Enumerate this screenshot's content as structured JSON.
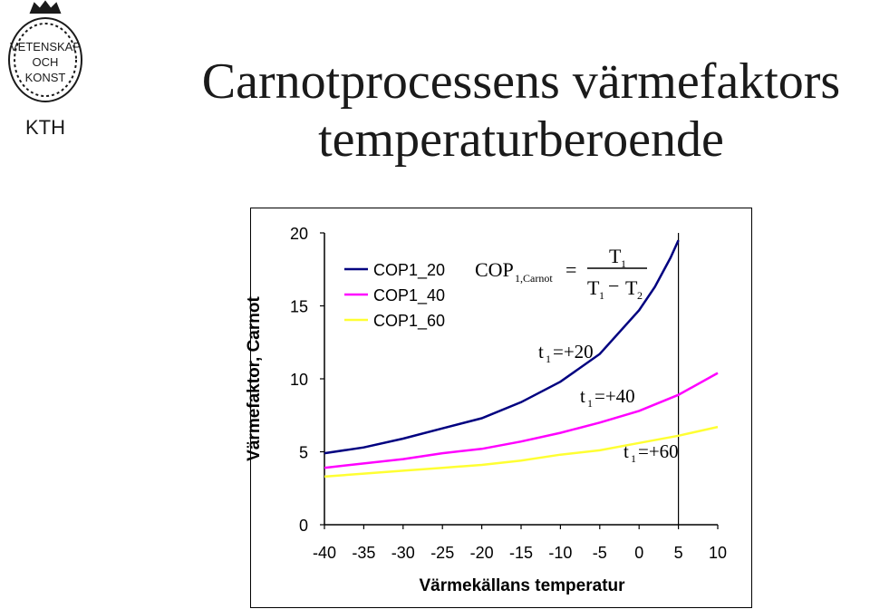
{
  "logo": {
    "lines": [
      "VETENSKAP",
      "OCH",
      "KONST"
    ],
    "brand": "KTH",
    "color": "#1a1a1a"
  },
  "title": {
    "line1": "Carnotprocessens värmefaktors",
    "line2": "temperaturberoende"
  },
  "chart_data": {
    "type": "line",
    "xlabel": "Värmekällans temperatur",
    "ylabel": "Värmefaktor, Carnot",
    "xlim": [
      -40,
      10
    ],
    "ylim": [
      0,
      20
    ],
    "x_ticks": [
      "-40",
      "-35",
      "-30",
      "-25",
      "-20",
      "-15",
      "-10",
      "-5",
      "0",
      "5",
      "10"
    ],
    "y_ticks": [
      "20",
      "15",
      "10",
      "5",
      "0"
    ],
    "x_tick_values": [
      -40,
      -35,
      -30,
      -25,
      -20,
      -15,
      -10,
      -5,
      0,
      5,
      10
    ],
    "y_tick_values": [
      20,
      15,
      10,
      5,
      0
    ],
    "legend_position": "top-left",
    "series": [
      {
        "name": "COP1_20",
        "color": "#000080",
        "x": [
          -40,
          -35,
          -30,
          -25,
          -20,
          -15,
          -10,
          -5,
          0,
          2,
          4,
          5
        ],
        "y": [
          4.9,
          5.3,
          5.9,
          6.6,
          7.3,
          8.4,
          9.8,
          11.7,
          14.7,
          16.3,
          18.3,
          19.5
        ]
      },
      {
        "name": "COP1_40",
        "color": "#ff00ff",
        "x": [
          -40,
          -35,
          -30,
          -25,
          -20,
          -15,
          -10,
          -5,
          0,
          5,
          10
        ],
        "y": [
          3.9,
          4.2,
          4.5,
          4.9,
          5.2,
          5.7,
          6.3,
          7.0,
          7.8,
          8.9,
          10.4
        ]
      },
      {
        "name": "COP1_60",
        "color": "#ffff33",
        "x": [
          -40,
          -35,
          -30,
          -25,
          -20,
          -15,
          -10,
          -5,
          0,
          5,
          10
        ],
        "y": [
          3.3,
          3.5,
          3.7,
          3.9,
          4.1,
          4.4,
          4.8,
          5.1,
          5.6,
          6.1,
          6.7
        ]
      }
    ],
    "annotations": {
      "formula_lhs": "COP",
      "formula_lhs_sub": "1,Carnot",
      "formula_eq": "=",
      "formula_num": "T",
      "formula_num_sub": "1",
      "formula_den_a": "T",
      "formula_den_a_sub": "1",
      "formula_minus": "−",
      "formula_den_b": "T",
      "formula_den_b_sub": "2",
      "t20_t": "t",
      "t20_sub": "1",
      "t20_val": "=+20",
      "t40_t": "t",
      "t40_sub": "1",
      "t40_val": "=+40",
      "t60_t": "t",
      "t60_sub": "1",
      "t60_val": "=+60"
    }
  }
}
